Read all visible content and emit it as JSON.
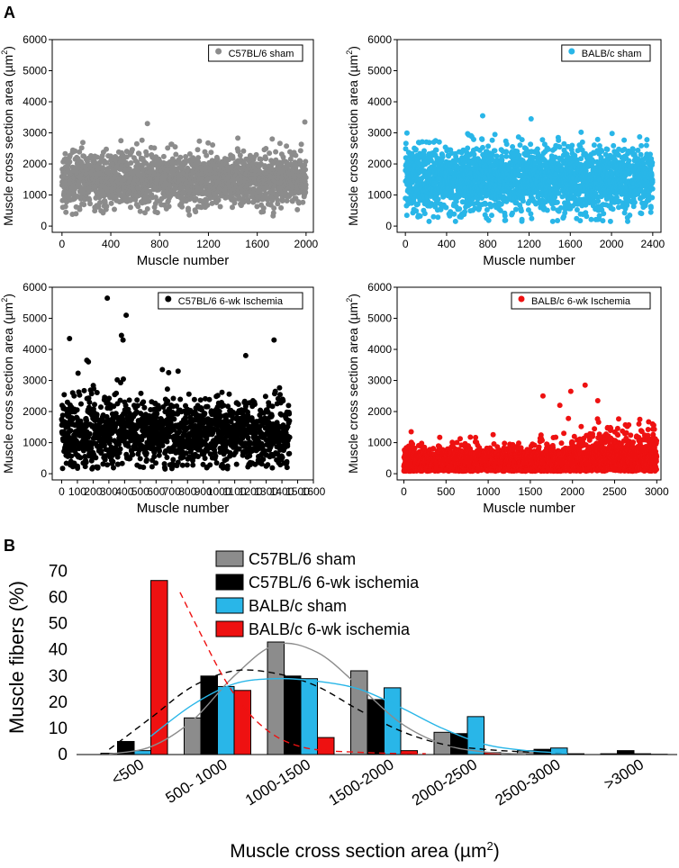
{
  "panel_labels": {
    "a": "A",
    "b": "B"
  },
  "chart_data": [
    {
      "type": "scatter",
      "id": "c57-sham",
      "legend": "C57BL/6 sham",
      "color": "#8c8c8c",
      "ylabel": "Muscle cross section area (µm²)",
      "ylabel_main": "Muscle cross section area (µm",
      "ylabel_sup": "2",
      "ylabel_end": ")",
      "xlabel": "Muscle number",
      "xlim": [
        -80,
        2060
      ],
      "ylim": [
        -200,
        6000
      ],
      "xticks": [
        0,
        400,
        800,
        1200,
        1600,
        2000
      ],
      "yticks": [
        0,
        1000,
        2000,
        3000,
        4000,
        5000,
        6000
      ],
      "n_points": 2000,
      "distribution": {
        "mean": 1500,
        "sd": 420,
        "min": 350,
        "max": 3300
      },
      "outliers": [
        [
          700,
          3300
        ],
        [
          1990,
          3350
        ],
        [
          1730,
          330
        ]
      ]
    },
    {
      "type": "scatter",
      "id": "balbc-sham",
      "legend": "BALB/c sham",
      "color": "#29b6e8",
      "ylabel": "Muscle cross section area (µm²)",
      "ylabel_main": "Muscle cross section area (µm",
      "ylabel_sup": "2",
      "ylabel_end": ")",
      "xlabel": "Muscle number",
      "xlim": [
        -80,
        2480
      ],
      "ylim": [
        -200,
        6000
      ],
      "xticks": [
        0,
        400,
        800,
        1200,
        1600,
        2000,
        2400
      ],
      "yticks": [
        0,
        1000,
        2000,
        3000,
        4000,
        5000,
        6000
      ],
      "n_points": 2400,
      "distribution": {
        "mean": 1500,
        "sd": 520,
        "min": 150,
        "max": 3550
      },
      "outliers": [
        [
          750,
          3550
        ],
        [
          1220,
          3450
        ],
        [
          230,
          150
        ]
      ]
    },
    {
      "type": "scatter",
      "id": "c57-isch",
      "legend": "C57BL/6 6-wk Ischemia",
      "color": "#000000",
      "ylabel": "Muscle cross section area (µm²)",
      "ylabel_main": "Muscle cross section area (µm",
      "ylabel_sup": "2",
      "ylabel_end": ")",
      "xlabel": "Muscle number",
      "xlim": [
        -60,
        1600
      ],
      "ylim": [
        -200,
        6000
      ],
      "xticks": [
        0,
        100,
        200,
        300,
        400,
        500,
        600,
        700,
        800,
        900,
        1000,
        1100,
        1200,
        1300,
        1400,
        1500,
        1600
      ],
      "yticks": [
        0,
        1000,
        2000,
        3000,
        4000,
        5000,
        6000
      ],
      "n_points": 1450,
      "distribution": {
        "mean": 1300,
        "sd": 560,
        "min": 150,
        "max": 5700
      },
      "outliers": [
        [
          290,
          5650
        ],
        [
          410,
          5100
        ],
        [
          380,
          4450
        ],
        [
          390,
          4300
        ],
        [
          50,
          4350
        ],
        [
          1350,
          4300
        ],
        [
          1170,
          3800
        ],
        [
          160,
          3650
        ],
        [
          170,
          3600
        ],
        [
          740,
          3300
        ],
        [
          640,
          3350
        ],
        [
          680,
          3250
        ]
      ]
    },
    {
      "type": "scatter",
      "id": "balbc-isch",
      "legend": "BALB/c 6-wk Ischemia",
      "color": "#ee1111",
      "ylabel": "Muscle cross section area (µm²)",
      "ylabel_main": "Muscle cross section area (µm",
      "ylabel_sup": "2",
      "ylabel_end": ")",
      "xlabel": "Muscle number",
      "xlim": [
        -80,
        3050
      ],
      "ylim": [
        -200,
        6000
      ],
      "xticks": [
        0,
        500,
        1000,
        1500,
        2000,
        2500,
        3000
      ],
      "yticks": [
        0,
        1000,
        2000,
        3000,
        4000,
        5000,
        6000
      ],
      "n_points": 3000,
      "distribution": {
        "mean": 400,
        "sd": 360,
        "min": 0,
        "max": 2850
      },
      "outliers": [
        [
          2150,
          2850
        ],
        [
          1980,
          2650
        ],
        [
          1650,
          2500
        ],
        [
          2300,
          2350
        ],
        [
          1850,
          2200
        ]
      ]
    },
    {
      "type": "bar",
      "id": "histogram",
      "ylabel": "Muscle fibers (%)",
      "xlabel": "Muscle cross section area (µm²)",
      "xlabel_main": "Muscle cross section area (µm",
      "xlabel_sup": "2",
      "xlabel_end": ")",
      "categories": [
        "<500",
        "500- 1000",
        "1000-1500",
        "1500-2000",
        "2000-2500",
        "2500-3000",
        ">3000"
      ],
      "ylim": [
        0,
        75
      ],
      "yticks": [
        0,
        10,
        20,
        30,
        40,
        50,
        60,
        70
      ],
      "series": [
        {
          "name": "C57BL/6 sham",
          "color": "#8c8c8c",
          "values": [
            0.5,
            14,
            43,
            32,
            8.5,
            1.5,
            0.3
          ]
        },
        {
          "name": "C57BL/6 6-wk ischemia",
          "color": "#000000",
          "values": [
            5,
            30,
            30,
            21,
            8,
            2,
            1.5
          ]
        },
        {
          "name": "BALB/c sham",
          "color": "#29b6e8",
          "values": [
            1.5,
            26,
            29,
            25.5,
            14.5,
            2.5,
            0.3
          ]
        },
        {
          "name": "BALB/c 6-wk ischemia",
          "color": "#ee1111",
          "values": [
            66.5,
            24.5,
            6.5,
            1.5,
            0.8,
            0.3,
            0.1
          ]
        }
      ],
      "fit_curves": [
        {
          "name": "C57BL/6 sham fit",
          "color": "#8c8c8c",
          "dash": "solid",
          "points": [
            [
              -0.3,
              0.2
            ],
            [
              0.2,
              3
            ],
            [
              0.7,
              13
            ],
            [
              1.2,
              30
            ],
            [
              1.7,
              42
            ],
            [
              2.2,
              39
            ],
            [
              2.7,
              26
            ],
            [
              3.2,
              12
            ],
            [
              3.7,
              4
            ],
            [
              4.2,
              1
            ],
            [
              4.7,
              0.2
            ]
          ]
        },
        {
          "name": "C57BL/6 6-wk ischemia fit",
          "color": "#000000",
          "dash": "dashed",
          "points": [
            [
              -0.3,
              2
            ],
            [
              0.2,
              14
            ],
            [
              0.7,
              26
            ],
            [
              1.2,
              32
            ],
            [
              1.7,
              31
            ],
            [
              2.2,
              26
            ],
            [
              2.7,
              17
            ],
            [
              3.2,
              9
            ],
            [
              3.7,
              4
            ],
            [
              4.2,
              2
            ],
            [
              4.7,
              1
            ],
            [
              5.2,
              0.6
            ]
          ]
        },
        {
          "name": "BALB/c sham fit",
          "color": "#29b6e8",
          "dash": "solid",
          "points": [
            [
              0.2,
              7
            ],
            [
              0.7,
              19
            ],
            [
              1.2,
              27
            ],
            [
              1.7,
              29
            ],
            [
              2.2,
              28
            ],
            [
              2.7,
              25
            ],
            [
              3.2,
              18
            ],
            [
              3.7,
              10
            ],
            [
              4.2,
              4
            ],
            [
              4.7,
              1.5
            ],
            [
              5.2,
              0.5
            ]
          ]
        },
        {
          "name": "BALB/c 6-wk ischemia fit",
          "color": "#ee1111",
          "dash": "dashed",
          "points": [
            [
              0.55,
              62
            ],
            [
              0.8,
              46
            ],
            [
              1.1,
              28
            ],
            [
              1.4,
              15
            ],
            [
              1.7,
              7
            ],
            [
              2.0,
              3
            ],
            [
              2.3,
              1.5
            ],
            [
              2.6,
              1
            ],
            [
              3.0,
              0.5
            ],
            [
              3.5,
              0.3
            ]
          ]
        }
      ]
    }
  ]
}
